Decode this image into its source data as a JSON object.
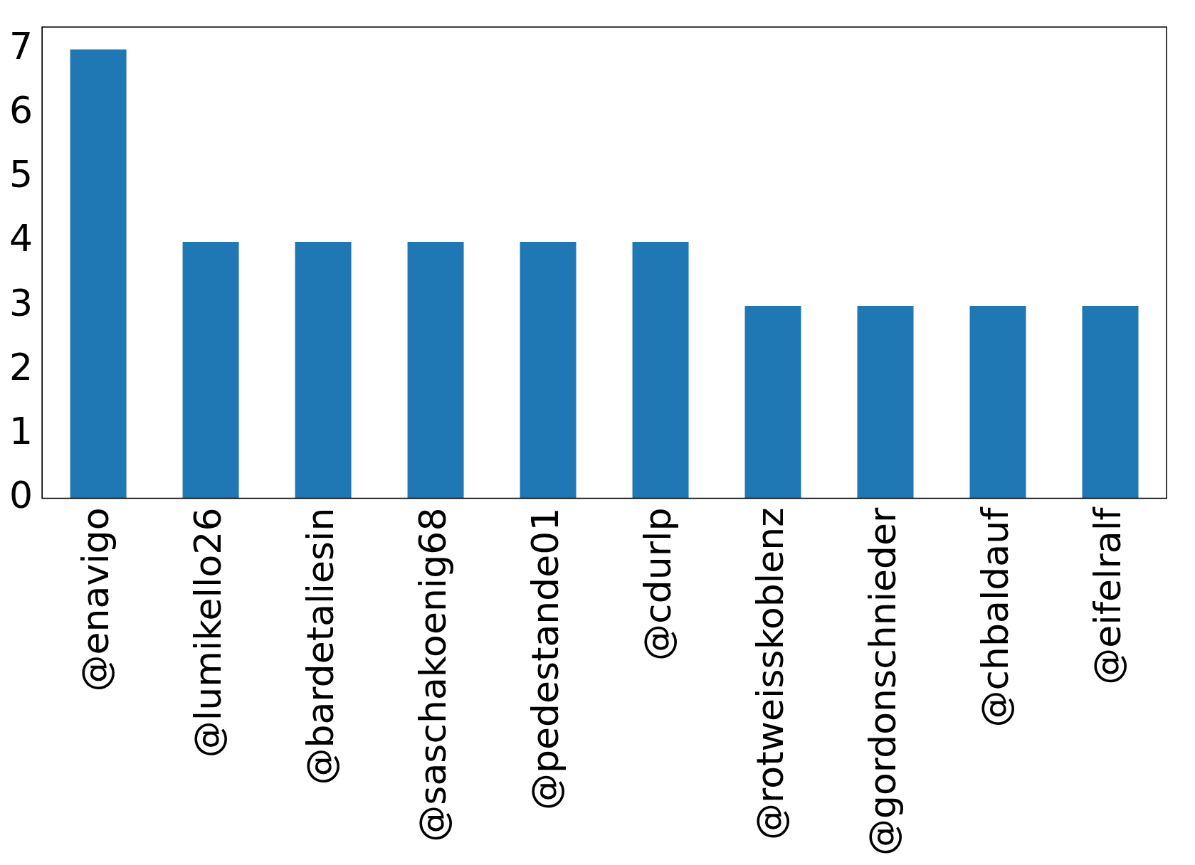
{
  "chart_data": {
    "type": "bar",
    "categories": [
      "@enavigo",
      "@lumikello26",
      "@bardetaliesin",
      "@saschakoenig68",
      "@pedestande01",
      "@cdurlp",
      "@rotweisskoblenz",
      "@gordonschnieder",
      "@chbaldauf",
      "@eifelralf"
    ],
    "values": [
      7,
      4,
      4,
      4,
      4,
      4,
      3,
      3,
      3,
      3
    ],
    "color": "#1f77b4",
    "ylim": [
      0,
      7.35
    ],
    "yticks": [
      0,
      1,
      2,
      3,
      4,
      5,
      6,
      7
    ],
    "grid": false,
    "legend": false
  }
}
